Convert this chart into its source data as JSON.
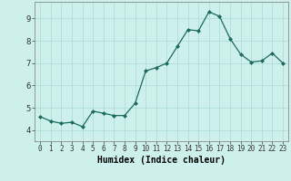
{
  "x": [
    0,
    1,
    2,
    3,
    4,
    5,
    6,
    7,
    8,
    9,
    10,
    11,
    12,
    13,
    14,
    15,
    16,
    17,
    18,
    19,
    20,
    21,
    22,
    23
  ],
  "y": [
    4.6,
    4.4,
    4.3,
    4.35,
    4.15,
    4.85,
    4.75,
    4.65,
    4.65,
    5.2,
    6.65,
    6.8,
    7.0,
    7.75,
    8.5,
    8.45,
    9.3,
    9.1,
    8.1,
    7.4,
    7.05,
    7.1,
    7.45,
    7.0
  ],
  "xlabel": "Humidex (Indice chaleur)",
  "ylim": [
    3.5,
    9.75
  ],
  "yticks": [
    4,
    5,
    6,
    7,
    8,
    9
  ],
  "xticks": [
    0,
    1,
    2,
    3,
    4,
    5,
    6,
    7,
    8,
    9,
    10,
    11,
    12,
    13,
    14,
    15,
    16,
    17,
    18,
    19,
    20,
    21,
    22,
    23
  ],
  "line_color": "#1a6b5a",
  "bg_color": "#cef0ed",
  "grid_color": "#b0ddd9"
}
